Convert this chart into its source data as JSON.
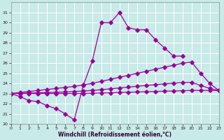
{
  "bg_color": "#c8eae8",
  "line_color": "#990099",
  "xlabel": "Windchill (Refroidissement éolien,°C)",
  "xlim": [
    0,
    23
  ],
  "ylim": [
    20,
    32
  ],
  "xticks": [
    0,
    1,
    2,
    3,
    4,
    5,
    6,
    7,
    8,
    9,
    10,
    11,
    12,
    13,
    14,
    15,
    16,
    17,
    18,
    19,
    20,
    21,
    22,
    23
  ],
  "yticks": [
    20,
    21,
    22,
    23,
    24,
    25,
    26,
    27,
    28,
    29,
    30,
    31
  ],
  "curve1_x": [
    0,
    1,
    2,
    3,
    4,
    5,
    6,
    7,
    8,
    9,
    10,
    11,
    12,
    13,
    14,
    15,
    16,
    17,
    18,
    19
  ],
  "curve1_y": [
    23.0,
    22.7,
    22.3,
    22.2,
    21.8,
    21.5,
    21.0,
    20.4,
    23.8,
    26.2,
    30.0,
    30.0,
    31.0,
    29.5,
    29.3,
    29.3,
    28.3,
    27.5,
    26.7,
    26.7
  ],
  "curve2_x": [
    0,
    1,
    2,
    3,
    4,
    5,
    6,
    7,
    8,
    9,
    10,
    11,
    12,
    13,
    14,
    15,
    16,
    17,
    18,
    19,
    20,
    21,
    22,
    23
  ],
  "curve2_y": [
    23.0,
    23.1,
    23.2,
    23.3,
    23.4,
    23.5,
    23.6,
    23.7,
    23.85,
    24.0,
    24.2,
    24.4,
    24.6,
    24.8,
    25.0,
    25.2,
    25.4,
    25.6,
    25.8,
    26.0,
    26.1,
    25.0,
    24.0,
    23.3
  ],
  "curve3_x": [
    0,
    1,
    2,
    3,
    4,
    5,
    6,
    7,
    8,
    9,
    10,
    11,
    12,
    13,
    14,
    15,
    16,
    17,
    18,
    19,
    20,
    21,
    22,
    23
  ],
  "curve3_y": [
    23.0,
    23.02,
    23.05,
    23.07,
    23.1,
    23.12,
    23.15,
    23.2,
    23.25,
    23.3,
    23.38,
    23.46,
    23.55,
    23.63,
    23.72,
    23.8,
    23.88,
    23.95,
    24.02,
    24.08,
    24.1,
    23.8,
    23.5,
    23.3
  ],
  "curve4_x": [
    0,
    1,
    2,
    3,
    4,
    5,
    6,
    7,
    8,
    9,
    10,
    11,
    12,
    13,
    14,
    15,
    16,
    17,
    18,
    19,
    20,
    21,
    22,
    23
  ],
  "curve4_y": [
    23.0,
    23.0,
    23.0,
    23.0,
    23.0,
    23.0,
    23.0,
    23.0,
    23.0,
    23.02,
    23.05,
    23.07,
    23.1,
    23.13,
    23.15,
    23.18,
    23.2,
    23.23,
    23.25,
    23.28,
    23.3,
    23.3,
    23.3,
    23.3
  ]
}
